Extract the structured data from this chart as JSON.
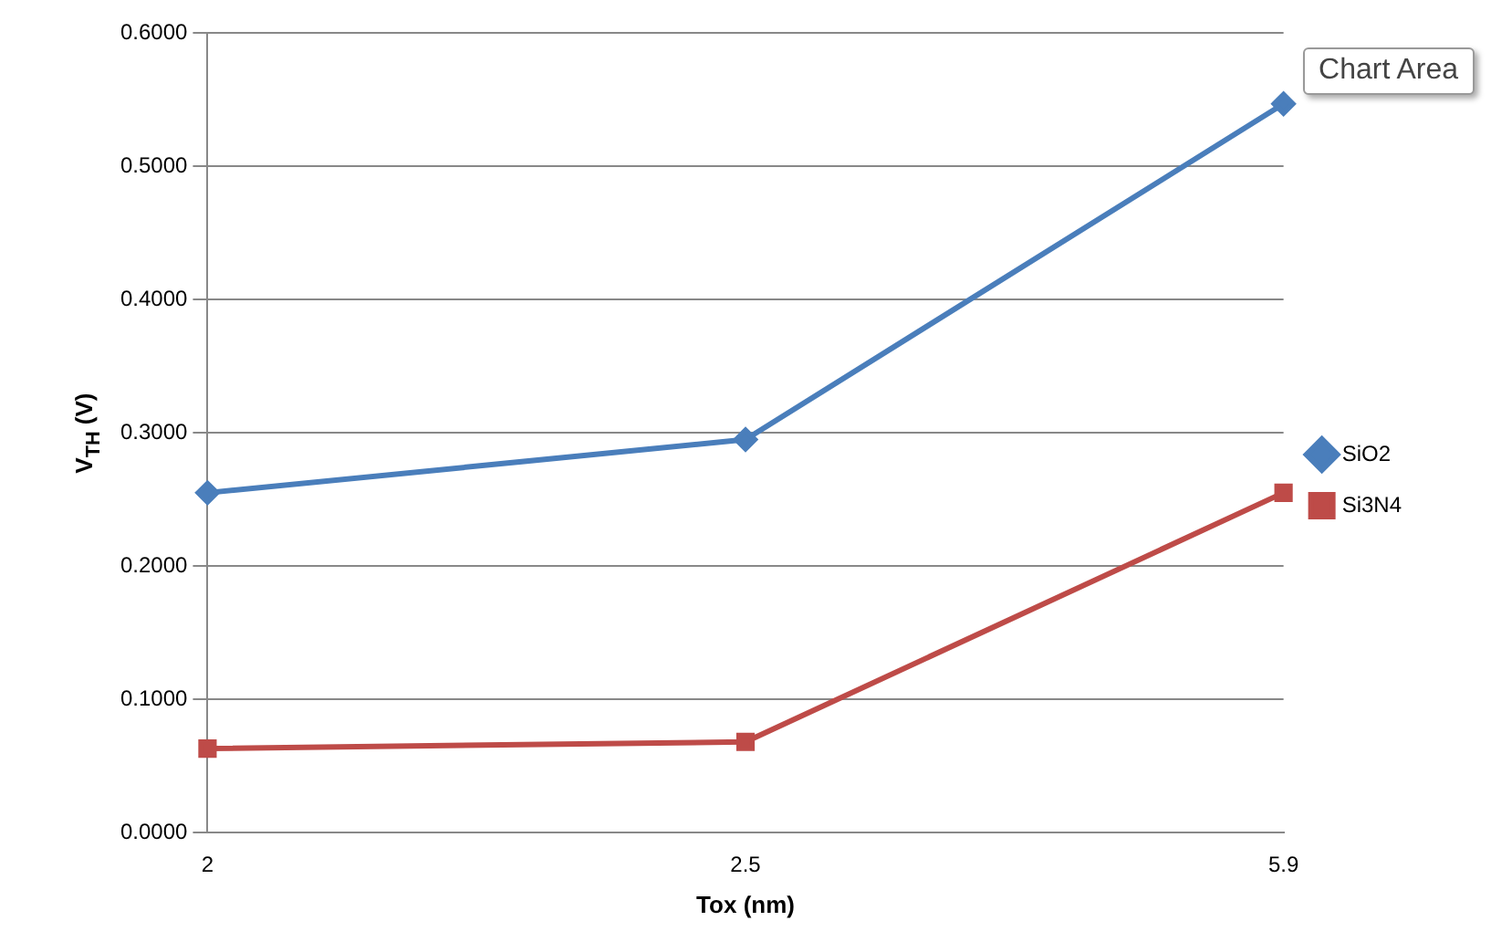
{
  "chart_data": {
    "type": "line",
    "xlabel": "Tox (nm)",
    "ylabel": "V$_{TH}$ (V)",
    "categories": [
      "2",
      "2.5",
      "5.9"
    ],
    "series": [
      {
        "name": "SiO2",
        "color": "#4a7ebb",
        "values": [
          0.255,
          0.295,
          0.547
        ],
        "marker": "diamond"
      },
      {
        "name": "Si3N4",
        "color": "#be4b48",
        "values": [
          0.063,
          0.068,
          0.255
        ],
        "marker": "square"
      }
    ],
    "ylim": [
      0,
      0.6
    ],
    "yticks": [
      {
        "value": 0,
        "label": "0.0000"
      },
      {
        "value": 0.1,
        "label": "0.1000"
      },
      {
        "value": 0.2,
        "label": "0.2000"
      },
      {
        "value": 0.3,
        "label": "0.3000"
      },
      {
        "value": 0.4,
        "label": "0.4000"
      },
      {
        "value": 0.5,
        "label": "0.5000"
      },
      {
        "value": 0.6,
        "label": "0.6000"
      }
    ],
    "grid": "y",
    "legend": "right",
    "line_style": "solid",
    "annotations": [
      "Chart Area"
    ]
  }
}
